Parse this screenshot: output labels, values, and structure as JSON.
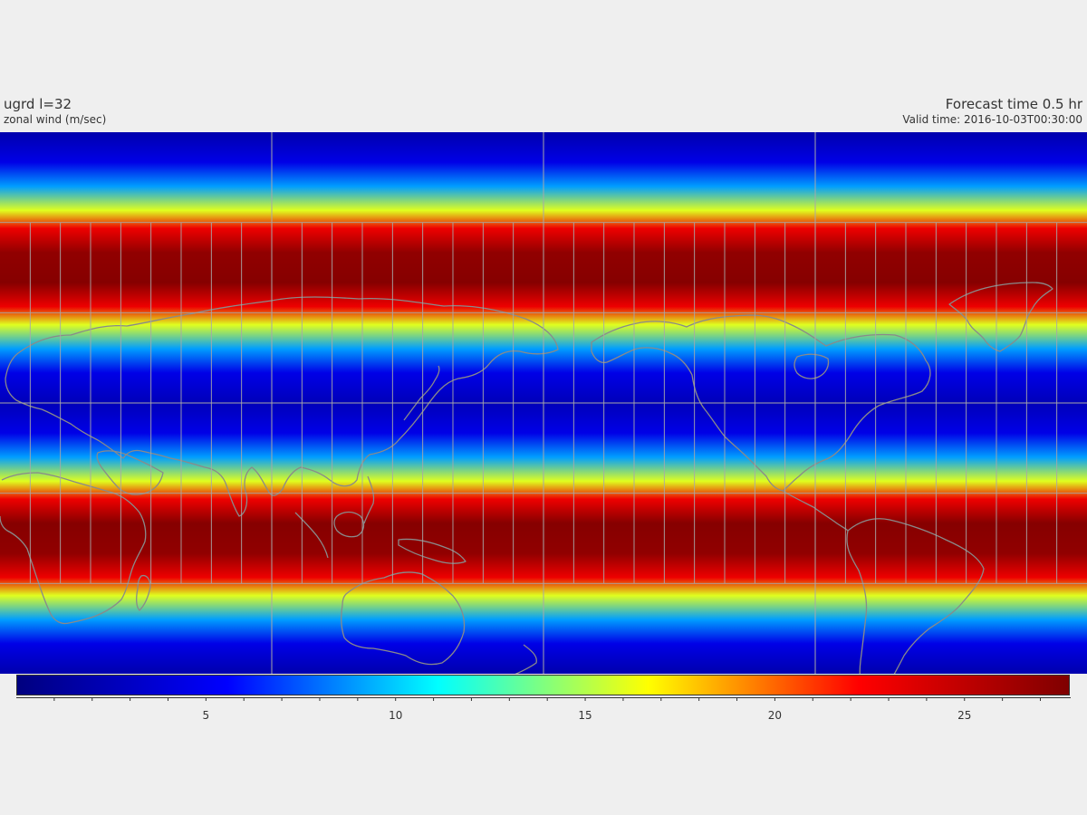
{
  "header": {
    "variable_title": "ugrd l=32",
    "variable_subtitle": "zonal wind (m/sec)",
    "forecast_time": "Forecast time 0.5 hr",
    "valid_time": "Valid time: 2016-10-03T00:30:00"
  },
  "map": {
    "projection": "equirectangular",
    "center_longitude": 180,
    "coastline_color": "#8a8a8a",
    "graticule_color": "#a8a8a8",
    "field_profile": {
      "variable": "zonal wind speed (m/sec)",
      "latitudes": [
        90,
        80,
        72,
        64,
        58,
        50,
        40,
        32,
        26,
        18,
        10,
        0,
        -10,
        -18,
        -26,
        -32,
        -40,
        -50,
        -58,
        -64,
        -72,
        -80,
        -90
      ],
      "values": [
        2,
        4.5,
        9,
        16,
        23,
        27,
        27.5,
        23,
        16,
        9,
        4.5,
        2.5,
        4.5,
        9,
        16,
        23,
        27.5,
        27,
        23,
        16,
        9,
        4.5,
        2
      ]
    }
  },
  "colorbar": {
    "min": 0,
    "max": 27.8,
    "major_ticks": [
      5,
      10,
      15,
      20,
      25
    ],
    "minor_step": 1,
    "colormap": "jet",
    "stops": [
      "#00007f",
      "#0000ff",
      "#00ffff",
      "#ffff00",
      "#ff0000",
      "#7f0000"
    ]
  }
}
